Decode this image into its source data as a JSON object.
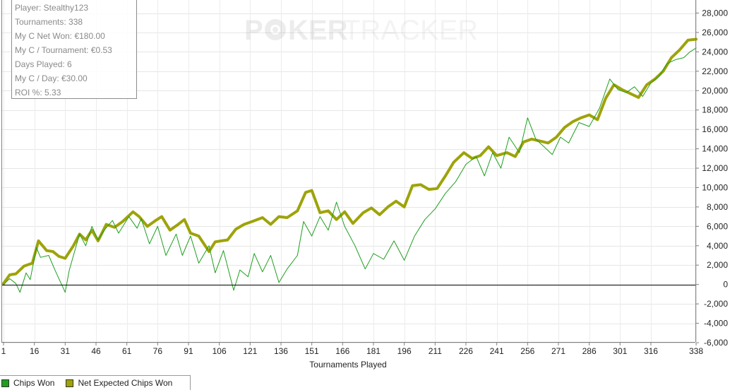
{
  "brand": {
    "watermark_left": "P",
    "watermark_mid": "KER",
    "watermark_right": "TRACKER"
  },
  "stats": [
    {
      "label": "Player: Stealthy123"
    },
    {
      "label": "Tournaments: 338"
    },
    {
      "label": "My C Net Won: €180.00"
    },
    {
      "label": "My C / Tournament: €0.53"
    },
    {
      "label": "Days Played: 6"
    },
    {
      "label": "My C / Day: €30.00"
    },
    {
      "label": "ROI %: 5.33"
    }
  ],
  "legend": [
    {
      "label": "Chips Won",
      "color": "#1f9e1f"
    },
    {
      "label": "Net Expected Chips Won",
      "color": "#9ea30a"
    }
  ],
  "chart_data": {
    "type": "line",
    "xlabel": "Tournaments Played",
    "ylabel": "",
    "xlim": [
      1,
      338
    ],
    "ylim": [
      -6000,
      28000
    ],
    "x_ticks": [
      1,
      16,
      31,
      46,
      61,
      76,
      91,
      106,
      121,
      136,
      151,
      166,
      181,
      196,
      211,
      226,
      241,
      256,
      271,
      286,
      301,
      316,
      338
    ],
    "y_ticks": [
      -6000,
      -4000,
      -2000,
      0,
      2000,
      4000,
      6000,
      8000,
      10000,
      12000,
      14000,
      16000,
      18000,
      20000,
      22000,
      24000,
      26000,
      28000
    ],
    "y_tick_labels": [
      "-6,000",
      "-4,000",
      "-2,000",
      "0",
      "2,000",
      "4,000",
      "6,000",
      "8,000",
      "10,000",
      "12,000",
      "14,000",
      "16,000",
      "18,000",
      "20,000",
      "22,000",
      "24,000",
      "26,000",
      "28,000"
    ],
    "grid": true,
    "legend_position": "bottom-left",
    "series": [
      {
        "name": "Chips Won",
        "color": "#1f9e1f",
        "x": [
          1,
          4,
          7,
          9,
          12,
          14,
          17,
          19,
          23,
          26,
          31,
          33,
          38,
          41,
          44,
          47,
          50,
          54,
          57,
          62,
          66,
          68,
          72,
          76,
          80,
          85,
          88,
          92,
          96,
          101,
          104,
          108,
          113,
          116,
          120,
          123,
          127,
          131,
          135,
          139,
          144,
          147,
          151,
          155,
          159,
          163,
          167,
          172,
          177,
          181,
          186,
          191,
          196,
          201,
          206,
          211,
          216,
          221,
          226,
          231,
          235,
          239,
          243,
          247,
          252,
          256,
          260,
          264,
          268,
          272,
          276,
          281,
          286,
          291,
          296,
          300,
          304,
          308,
          312,
          316,
          320,
          324,
          328,
          332,
          335,
          338
        ],
        "y": [
          0,
          600,
          100,
          -800,
          1200,
          500,
          3800,
          2800,
          3000,
          1500,
          -800,
          1500,
          5200,
          4000,
          6000,
          4600,
          5600,
          6600,
          5300,
          7000,
          5800,
          6800,
          4200,
          6000,
          3000,
          5200,
          3000,
          5000,
          2200,
          4000,
          1200,
          3500,
          -600,
          1500,
          800,
          3200,
          1300,
          3000,
          200,
          1600,
          3000,
          6500,
          5000,
          7000,
          5600,
          8500,
          6000,
          4000,
          1600,
          3200,
          2600,
          4500,
          2500,
          5000,
          6700,
          7800,
          9400,
          10600,
          12400,
          13200,
          11200,
          13600,
          12000,
          15200,
          13600,
          17200,
          15000,
          14200,
          13400,
          15200,
          14600,
          16700,
          16300,
          18200,
          21200,
          20100,
          19800,
          20400,
          19400,
          20800,
          21500,
          22800,
          23200,
          23400,
          24000,
          24400
        ]
      },
      {
        "name": "Net Expected Chips Won",
        "color": "#9ea30a",
        "x": [
          1,
          4,
          7,
          11,
          15,
          18,
          22,
          25,
          28,
          31,
          35,
          38,
          41,
          44,
          47,
          51,
          55,
          59,
          64,
          67,
          71,
          75,
          78,
          82,
          86,
          89,
          92,
          96,
          101,
          104,
          107,
          110,
          114,
          118,
          122,
          127,
          131,
          135,
          139,
          144,
          148,
          151,
          155,
          159,
          163,
          167,
          171,
          176,
          180,
          184,
          188,
          192,
          196,
          200,
          204,
          208,
          212,
          216,
          220,
          225,
          229,
          233,
          237,
          241,
          246,
          250,
          254,
          258,
          262,
          266,
          270,
          274,
          278,
          282,
          286,
          290,
          294,
          298,
          302,
          306,
          310,
          314,
          318,
          322,
          326,
          330,
          334,
          338
        ],
        "y": [
          100,
          1000,
          1100,
          1900,
          2200,
          4500,
          3500,
          3400,
          2900,
          2700,
          4000,
          5200,
          4600,
          5600,
          4500,
          6200,
          5900,
          6500,
          7500,
          7000,
          6000,
          6600,
          7000,
          5600,
          6200,
          6700,
          5300,
          5000,
          3400,
          4400,
          4500,
          4600,
          5700,
          6200,
          6500,
          6900,
          6200,
          7000,
          6900,
          7600,
          9500,
          9700,
          7400,
          7600,
          6700,
          7500,
          6300,
          7400,
          7900,
          7200,
          8000,
          8600,
          8000,
          10200,
          10300,
          9800,
          9900,
          11200,
          12600,
          13600,
          13000,
          13300,
          14200,
          13300,
          13600,
          13200,
          14700,
          15000,
          14800,
          14600,
          15200,
          16200,
          16800,
          17200,
          17500,
          17000,
          19200,
          20600,
          20100,
          19700,
          19300,
          20600,
          21200,
          22000,
          23400,
          24200,
          25200,
          25300
        ]
      }
    ]
  }
}
